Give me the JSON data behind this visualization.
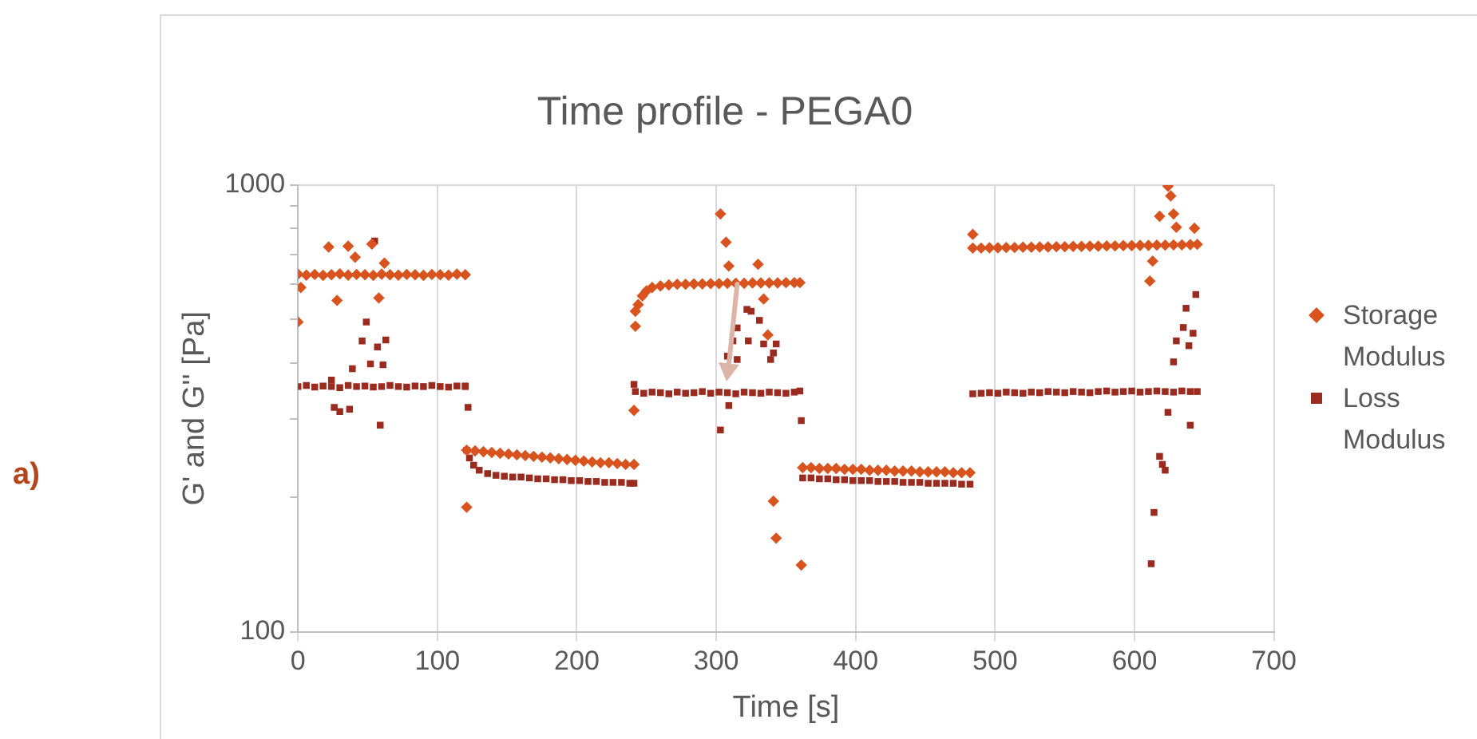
{
  "chart_data": {
    "type": "scatter",
    "title": "Time profile - PEGA0",
    "xlabel": "Time [s]",
    "ylabel": "G' and G'' [Pa]",
    "annotations": [
      "a)"
    ],
    "xlim": [
      0,
      700
    ],
    "xticks": [
      0,
      100,
      200,
      300,
      400,
      500,
      600,
      700
    ],
    "ylim": [
      100,
      1000
    ],
    "yticks": [
      100,
      {
        "value": 200,
        "label": null
      },
      {
        "value": 300,
        "label": null
      },
      {
        "value": 400,
        "label": null
      },
      {
        "value": 500,
        "label": null
      },
      {
        "value": 600,
        "label": null
      },
      {
        "value": 700,
        "label": null
      },
      {
        "value": 800,
        "label": null
      },
      {
        "value": 900,
        "label": null
      },
      1000
    ],
    "log": true,
    "grid": true,
    "legend": "right",
    "series": [
      {
        "name": "Storage Modulus",
        "color": "#d9531e",
        "marker": "diamond",
        "x": [
          0,
          6,
          12,
          18,
          24,
          30,
          36,
          42,
          48,
          54,
          60,
          66,
          72,
          78,
          84,
          90,
          96,
          102,
          108,
          114,
          120,
          2,
          0,
          22,
          36,
          28,
          41,
          53,
          58,
          62,
          121,
          121,
          127,
          133,
          139,
          145,
          151,
          157,
          163,
          169,
          175,
          181,
          187,
          193,
          199,
          205,
          211,
          217,
          223,
          229,
          235,
          241,
          242,
          242,
          241,
          244,
          247,
          250,
          254,
          260,
          266,
          272,
          278,
          284,
          290,
          296,
          302,
          308,
          314,
          320,
          326,
          332,
          338,
          344,
          350,
          356,
          360,
          303,
          307,
          309,
          330,
          334,
          337,
          341,
          343,
          361,
          362,
          368,
          374,
          380,
          386,
          392,
          398,
          404,
          410,
          416,
          422,
          428,
          434,
          440,
          446,
          452,
          458,
          464,
          470,
          476,
          482,
          484,
          490,
          496,
          502,
          508,
          514,
          520,
          526,
          532,
          538,
          544,
          550,
          556,
          562,
          568,
          574,
          580,
          586,
          592,
          598,
          604,
          610,
          616,
          622,
          628,
          634,
          640,
          645,
          484,
          624,
          626,
          618,
          628,
          630,
          643,
          613,
          611
        ],
        "values": [
          632,
          629,
          631,
          628,
          630,
          633,
          629,
          631,
          630,
          628,
          632,
          630,
          629,
          631,
          630,
          628,
          631,
          630,
          629,
          632,
          630,
          590,
          494,
          727,
          730,
          552,
          690,
          738,
          559,
          669,
          190,
          255,
          254,
          253,
          252,
          251,
          250,
          249,
          248,
          247,
          246,
          245,
          244,
          243,
          242,
          241,
          240,
          239,
          239,
          238,
          237,
          237,
          522,
          483,
          313,
          540,
          565,
          580,
          590,
          595,
          598,
          600,
          600,
          601,
          601,
          602,
          602,
          603,
          603,
          603,
          604,
          604,
          604,
          604,
          605,
          605,
          605,
          862,
          745,
          659,
          665,
          556,
          462,
          196,
          162,
          141,
          233,
          233,
          232,
          232,
          232,
          231,
          231,
          231,
          230,
          230,
          230,
          229,
          229,
          229,
          228,
          228,
          228,
          228,
          227,
          227,
          227,
          723,
          723,
          724,
          724,
          725,
          725,
          726,
          726,
          727,
          727,
          728,
          728,
          729,
          729,
          730,
          730,
          731,
          731,
          732,
          732,
          733,
          733,
          734,
          734,
          735,
          735,
          736,
          737,
          776,
          995,
          946,
          852,
          862,
          805,
          801,
          676,
          610
        ]
      },
      {
        "name": "Loss Modulus",
        "color": "#9b2b1f",
        "marker": "square",
        "x": [
          0,
          6,
          12,
          18,
          24,
          30,
          36,
          42,
          48,
          54,
          60,
          66,
          72,
          78,
          84,
          90,
          96,
          102,
          108,
          114,
          120,
          55,
          49,
          46,
          57,
          63,
          39,
          52,
          61,
          24,
          26,
          30,
          37,
          59,
          120,
          122,
          121,
          123,
          126,
          130,
          136,
          142,
          148,
          154,
          160,
          166,
          172,
          178,
          184,
          190,
          196,
          202,
          208,
          214,
          220,
          226,
          232,
          238,
          241,
          241,
          242,
          248,
          254,
          260,
          266,
          272,
          278,
          284,
          290,
          296,
          302,
          308,
          314,
          320,
          326,
          332,
          338,
          344,
          350,
          356,
          360,
          303,
          322,
          325,
          315,
          331,
          323,
          312,
          308,
          315,
          334,
          343,
          341,
          339,
          309,
          361,
          362,
          368,
          374,
          380,
          386,
          392,
          398,
          404,
          410,
          416,
          422,
          428,
          434,
          440,
          446,
          452,
          458,
          464,
          470,
          476,
          482,
          484,
          490,
          496,
          502,
          508,
          514,
          520,
          526,
          532,
          538,
          544,
          550,
          556,
          562,
          568,
          574,
          580,
          586,
          592,
          598,
          604,
          610,
          616,
          622,
          628,
          634,
          640,
          645,
          644,
          637,
          635,
          642,
          630,
          639,
          628,
          624,
          640,
          618,
          620,
          622,
          614,
          612
        ],
        "values": [
          354,
          356,
          353,
          355,
          354,
          352,
          356,
          354,
          355,
          353,
          354,
          356,
          354,
          353,
          355,
          354,
          356,
          354,
          353,
          355,
          354,
          750,
          494,
          448,
          434,
          450,
          388,
          398,
          396,
          366,
          318,
          311,
          315,
          290,
          355,
          318,
          255,
          245,
          236,
          230,
          226,
          224,
          223,
          222,
          222,
          221,
          220,
          220,
          219,
          219,
          218,
          218,
          217,
          217,
          216,
          216,
          216,
          215,
          215,
          358,
          345,
          342,
          344,
          343,
          341,
          344,
          342,
          343,
          345,
          342,
          344,
          343,
          341,
          344,
          343,
          342,
          344,
          343,
          342,
          344,
          346,
          283,
          527,
          522,
          479,
          498,
          448,
          448,
          414,
          407,
          441,
          441,
          421,
          407,
          321,
          297,
          221,
          221,
          220,
          220,
          219,
          219,
          218,
          218,
          218,
          217,
          217,
          217,
          216,
          216,
          216,
          215,
          215,
          215,
          215,
          214,
          214,
          341,
          342,
          343,
          342,
          344,
          343,
          342,
          344,
          343,
          345,
          344,
          343,
          345,
          344,
          343,
          345,
          346,
          344,
          345,
          346,
          344,
          345,
          346,
          345,
          344,
          346,
          345,
          345,
          569,
          530,
          480,
          466,
          448,
          437,
          402,
          310,
          290,
          247,
          237,
          230,
          185,
          142
        ]
      }
    ]
  }
}
